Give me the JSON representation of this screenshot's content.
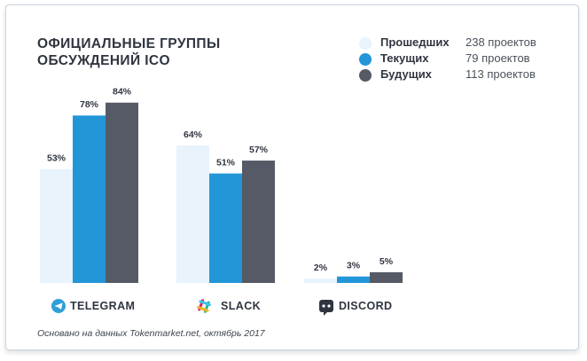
{
  "title_lines": [
    "ОФИЦИАЛЬНЫЕ ГРУППЫ",
    "ОБСУЖДЕНИЙ ICO"
  ],
  "legend": [
    {
      "name": "Прошедших",
      "count": "238 проектов",
      "color": "#e8f3fc"
    },
    {
      "name": "Текущих",
      "count": "79 проектов",
      "color": "#2396d8"
    },
    {
      "name": "Будущих",
      "count": "113 проектов",
      "color": "#555a66"
    }
  ],
  "footnote": "Основано на данных Tokenmarket.net, октябрь 2017",
  "chart_data": {
    "type": "bar",
    "title": "ОФИЦИАЛЬНЫЕ ГРУППЫ ОБСУЖДЕНИЙ ICO",
    "categories": [
      "TELEGRAM",
      "SLACK",
      "DISCORD"
    ],
    "category_icons": [
      "telegram-icon",
      "slack-icon",
      "discord-icon"
    ],
    "unit": "%",
    "ylim": [
      0,
      84
    ],
    "series": [
      {
        "name": "Прошедших",
        "values": [
          53,
          64,
          2
        ],
        "color": "#e8f3fc"
      },
      {
        "name": "Текущих",
        "values": [
          78,
          51,
          3
        ],
        "color": "#2396d8"
      },
      {
        "name": "Будущих",
        "values": [
          84,
          57,
          5
        ],
        "color": "#555a66"
      }
    ],
    "legend_position": "top-right",
    "grid": false
  }
}
